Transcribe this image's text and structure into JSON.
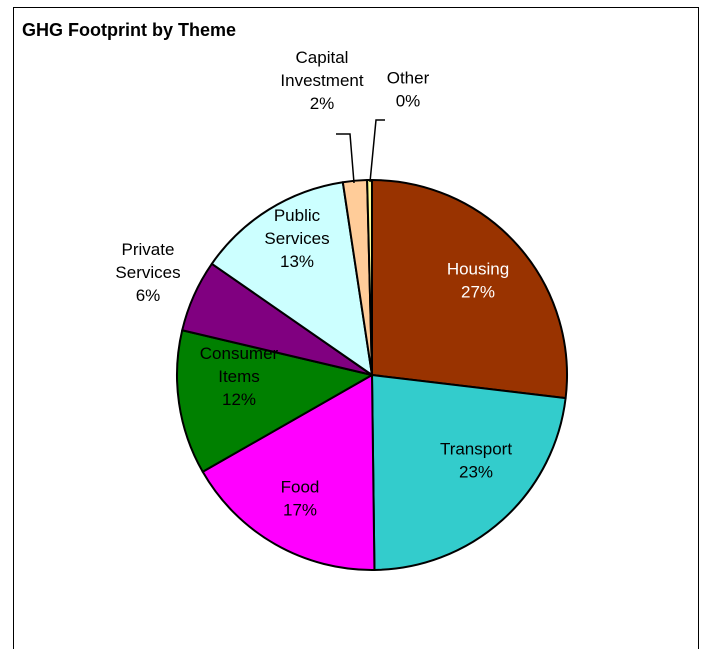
{
  "chart_data": {
    "type": "pie",
    "title": "GHG Footprint by Theme",
    "slices": [
      {
        "label_lines": [
          "Housing"
        ],
        "value": 27,
        "percent_label": "27%",
        "color": "#993300",
        "text_color": "#ffffff"
      },
      {
        "label_lines": [
          "Transport"
        ],
        "value": 23,
        "percent_label": "23%",
        "color": "#33CCCC",
        "text_color": "#000000"
      },
      {
        "label_lines": [
          "Food"
        ],
        "value": 17,
        "percent_label": "17%",
        "color": "#FF00FF",
        "text_color": "#000000"
      },
      {
        "label_lines": [
          "Consumer",
          "Items"
        ],
        "value": 12,
        "percent_label": "12%",
        "color": "#008000",
        "text_color": "#000000"
      },
      {
        "label_lines": [
          "Private",
          "Services"
        ],
        "value": 6,
        "percent_label": "6%",
        "color": "#800080",
        "text_color": "#000000"
      },
      {
        "label_lines": [
          "Public",
          "Services"
        ],
        "value": 13,
        "percent_label": "13%",
        "color": "#CCFFFF",
        "text_color": "#000000"
      },
      {
        "label_lines": [
          "Capital",
          "Investment"
        ],
        "value": 2,
        "percent_label": "2%",
        "color": "#FFCC99",
        "text_color": "#000000"
      },
      {
        "label_lines": [
          "Other"
        ],
        "value": 0.4,
        "percent_label": "0%",
        "color": "#FFFF99",
        "text_color": "#000000"
      }
    ],
    "start_angle": "12 o'clock",
    "direction": "clockwise",
    "legend": "none"
  }
}
